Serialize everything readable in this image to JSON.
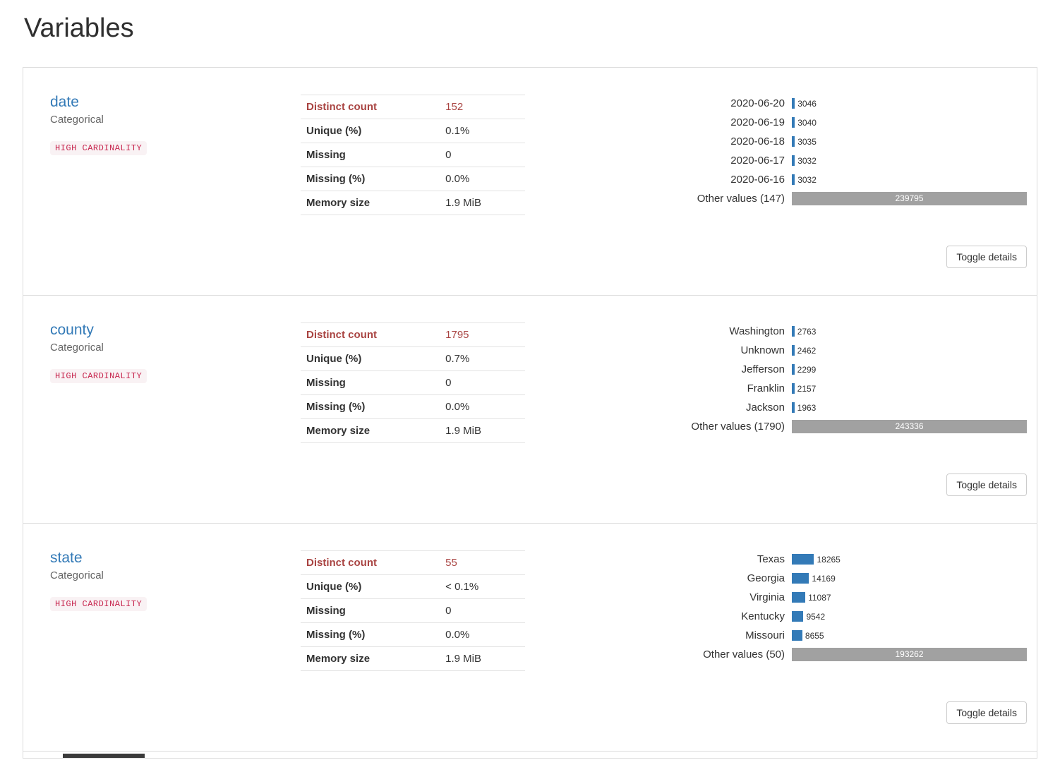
{
  "page": {
    "title": "Variables"
  },
  "theme": {
    "link_color": "#337ab7",
    "alert_color": "#a94442",
    "badge_bg": "#f9f2f4",
    "badge_color": "#c7254e",
    "bar_blue": "#337ab7",
    "bar_gray": "#a1a1a1",
    "border_color": "#dddddd"
  },
  "toggle_button_label": "Toggle details",
  "variables": [
    {
      "name": "date",
      "type": "Categorical",
      "badge": "HIGH CARDINALITY",
      "stats": [
        {
          "label": "Distinct count",
          "value": "152"
        },
        {
          "label": "Unique (%)",
          "value": "0.1%"
        },
        {
          "label": "Missing",
          "value": "0"
        },
        {
          "label": "Missing (%)",
          "value": "0.0%"
        },
        {
          "label": "Memory size",
          "value": "1.9 MiB"
        }
      ],
      "frequencies": [
        {
          "label": "2020-06-20",
          "count": 3046
        },
        {
          "label": "2020-06-19",
          "count": 3040
        },
        {
          "label": "2020-06-18",
          "count": 3035
        },
        {
          "label": "2020-06-17",
          "count": 3032
        },
        {
          "label": "2020-06-16",
          "count": 3032
        },
        {
          "label": "Other values (147)",
          "count": 239795
        }
      ]
    },
    {
      "name": "county",
      "type": "Categorical",
      "badge": "HIGH CARDINALITY",
      "stats": [
        {
          "label": "Distinct count",
          "value": "1795"
        },
        {
          "label": "Unique (%)",
          "value": "0.7%"
        },
        {
          "label": "Missing",
          "value": "0"
        },
        {
          "label": "Missing (%)",
          "value": "0.0%"
        },
        {
          "label": "Memory size",
          "value": "1.9 MiB"
        }
      ],
      "frequencies": [
        {
          "label": "Washington",
          "count": 2763
        },
        {
          "label": "Unknown",
          "count": 2462
        },
        {
          "label": "Jefferson",
          "count": 2299
        },
        {
          "label": "Franklin",
          "count": 2157
        },
        {
          "label": "Jackson",
          "count": 1963
        },
        {
          "label": "Other values (1790)",
          "count": 243336
        }
      ]
    },
    {
      "name": "state",
      "type": "Categorical",
      "badge": "HIGH CARDINALITY",
      "stats": [
        {
          "label": "Distinct count",
          "value": "55"
        },
        {
          "label": "Unique (%)",
          "value": "< 0.1%"
        },
        {
          "label": "Missing",
          "value": "0"
        },
        {
          "label": "Missing (%)",
          "value": "0.0%"
        },
        {
          "label": "Memory size",
          "value": "1.9 MiB"
        }
      ],
      "frequencies": [
        {
          "label": "Texas",
          "count": 18265
        },
        {
          "label": "Georgia",
          "count": 14169
        },
        {
          "label": "Virginia",
          "count": 11087
        },
        {
          "label": "Kentucky",
          "count": 9542
        },
        {
          "label": "Missouri",
          "count": 8655
        },
        {
          "label": "Other values (50)",
          "count": 193262
        }
      ]
    }
  ]
}
